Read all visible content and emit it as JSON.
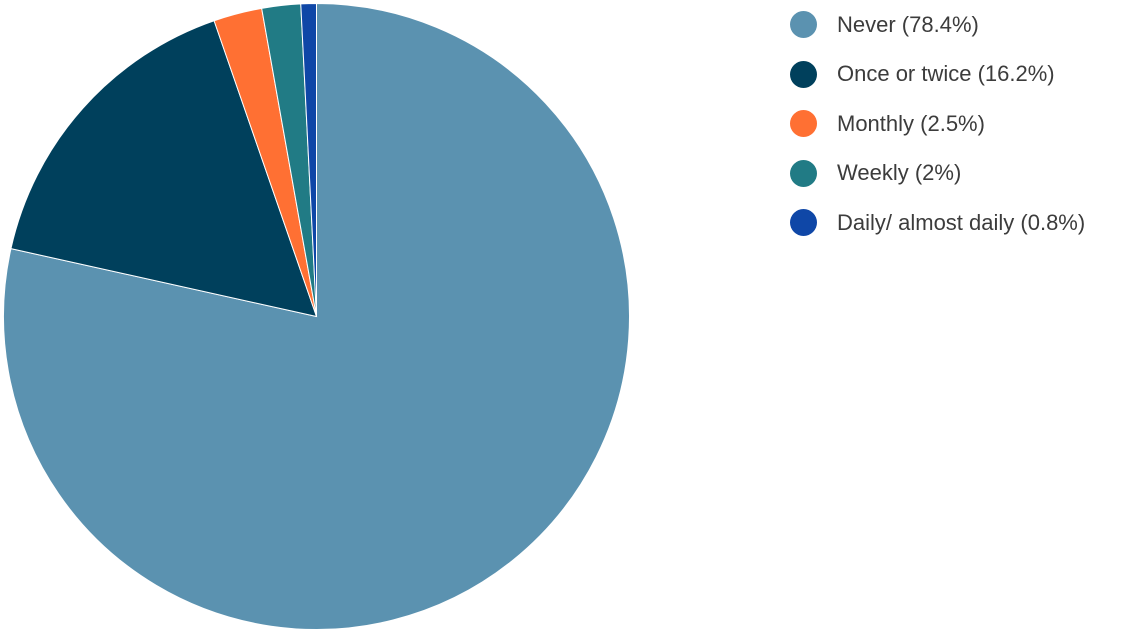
{
  "chart_data": {
    "type": "pie",
    "start_angle_deg": 0,
    "direction": "clockwise",
    "legend_position": "right",
    "slices": [
      {
        "label": "Never (78.4%)",
        "value": 78.4,
        "color": "#5b92b0"
      },
      {
        "label": "Once or twice (16.2%)",
        "value": 16.2,
        "color": "#00405c"
      },
      {
        "label": "Monthly (2.5%)",
        "value": 2.5,
        "color": "#ff7033"
      },
      {
        "label": "Weekly (2%)",
        "value": 2.0,
        "color": "#217b85"
      },
      {
        "label": "Daily/ almost daily (0.8%)",
        "value": 0.8,
        "color": "#0f47a7"
      }
    ]
  }
}
